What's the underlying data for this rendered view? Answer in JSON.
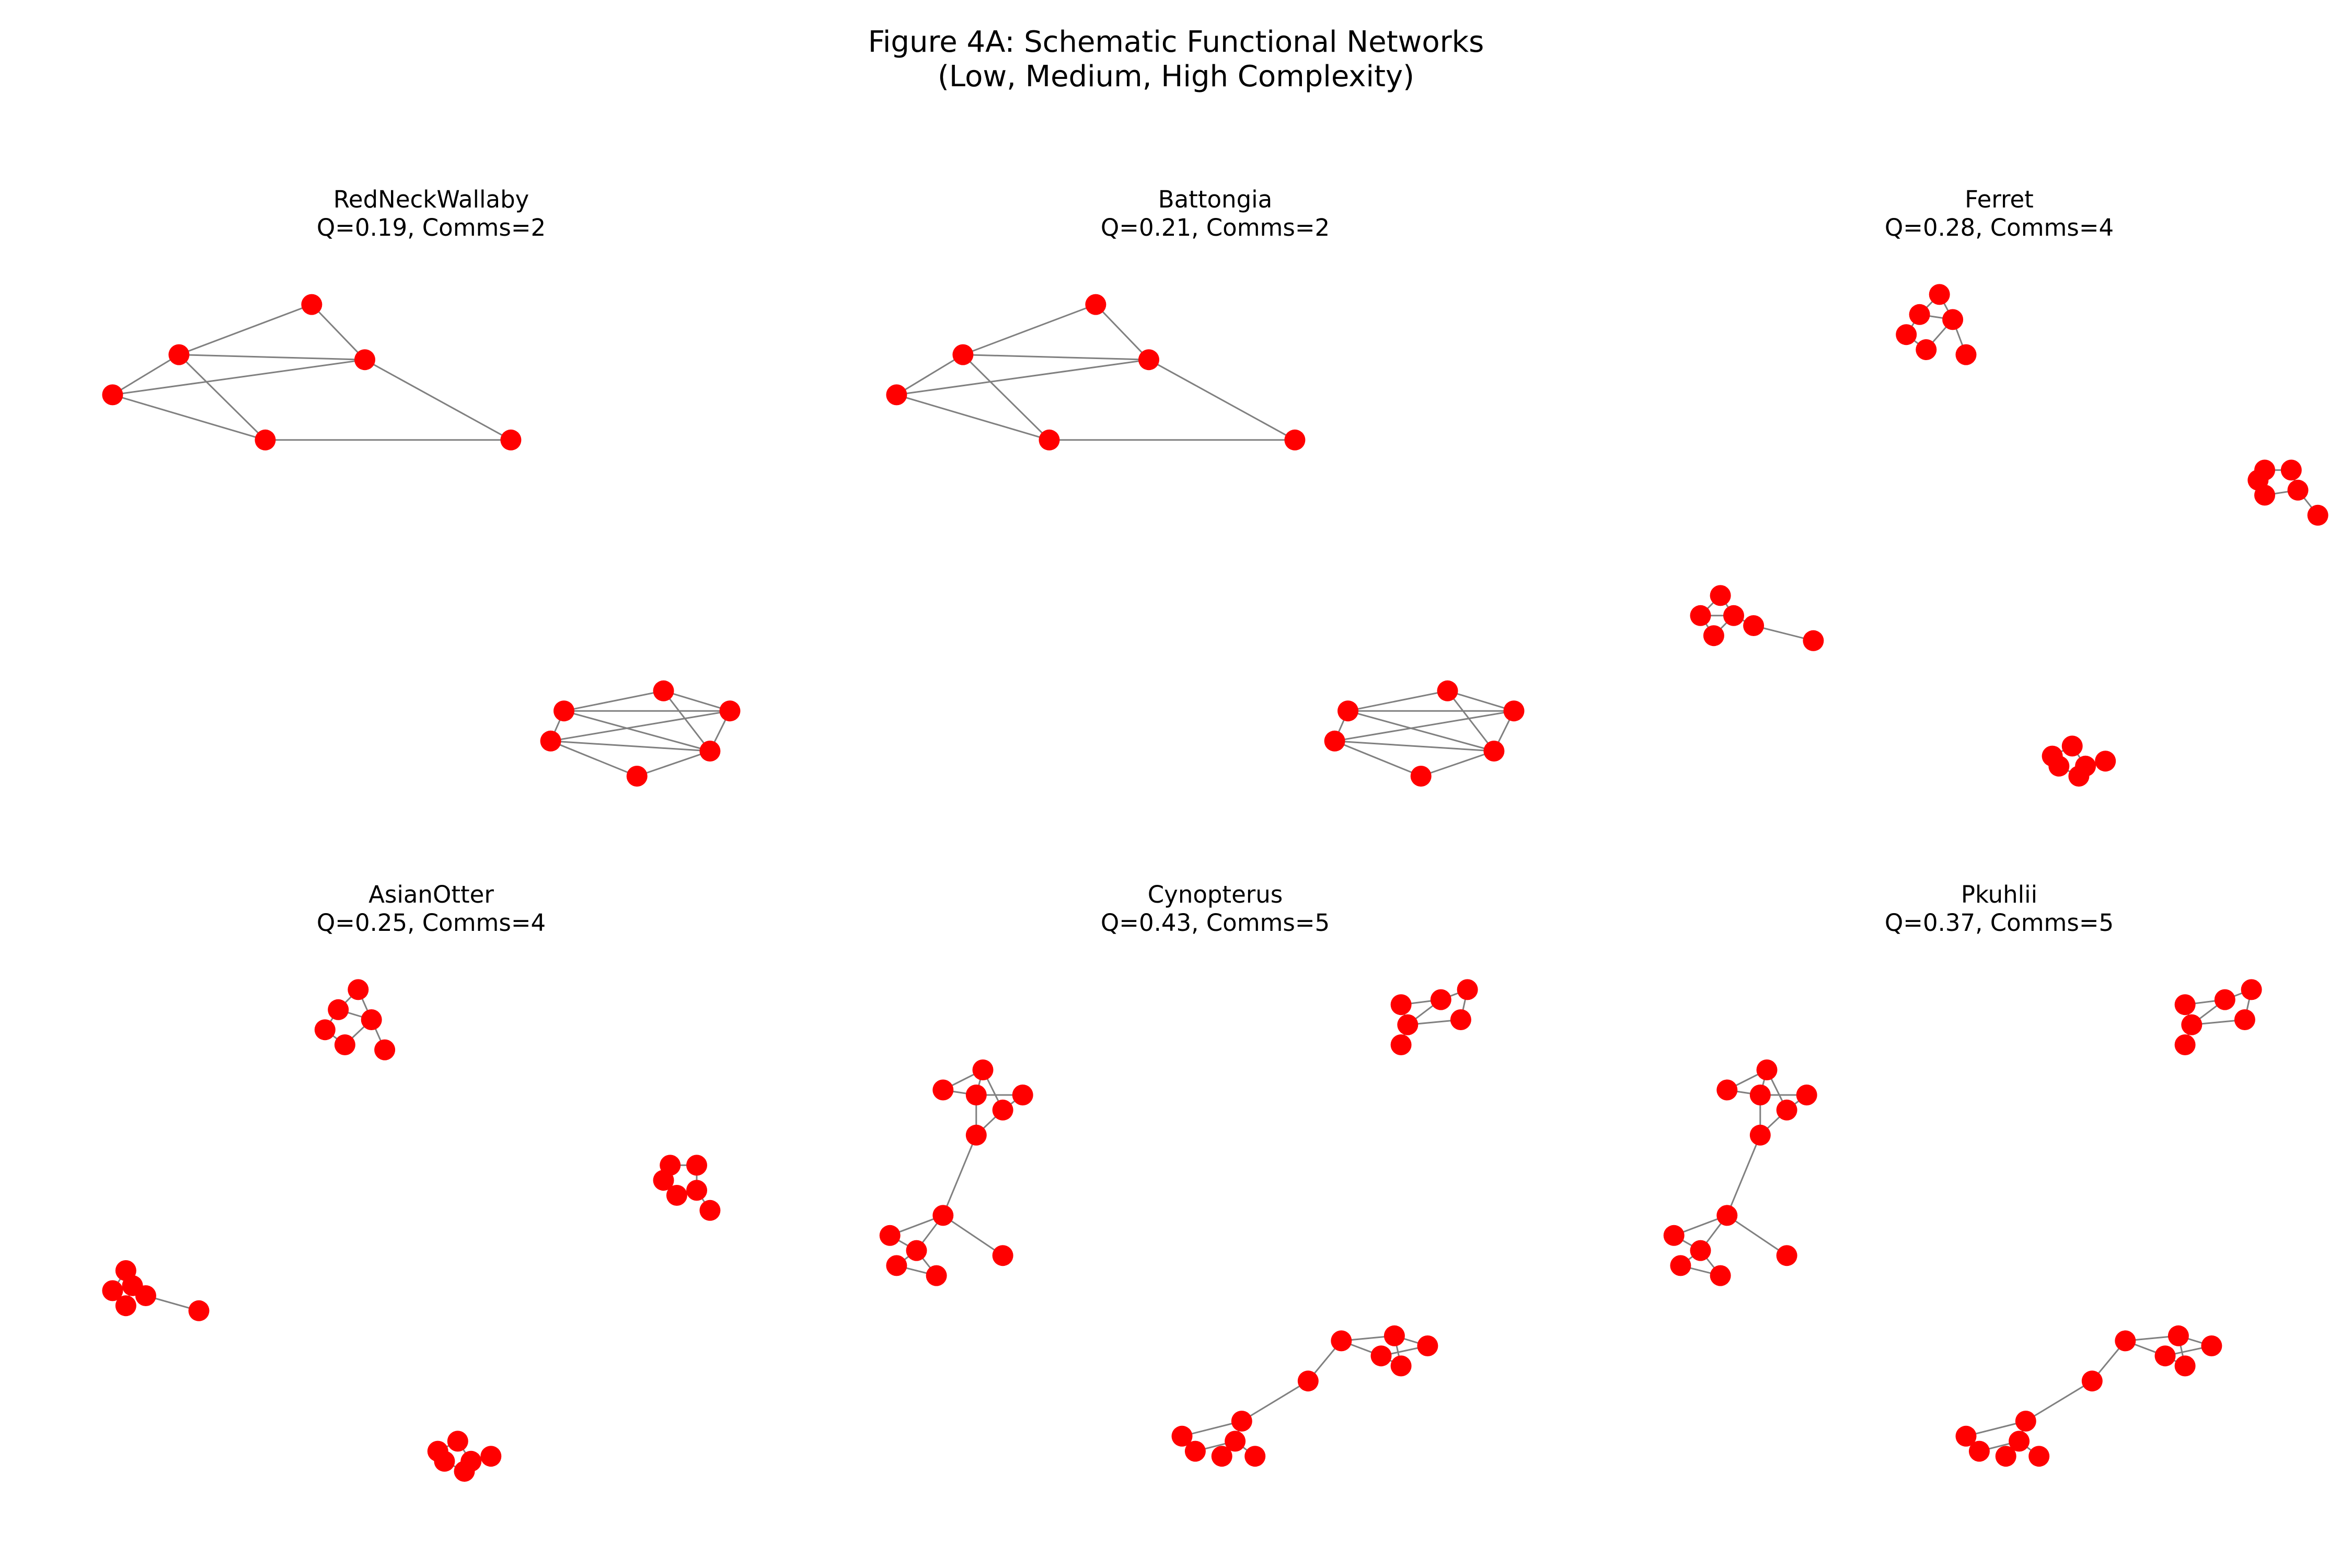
{
  "figure": {
    "title_line1": "Figure 4A: Schematic Functional Networks",
    "title_line2": "(Low, Medium, High Complexity)"
  },
  "style": {
    "node_color": "#ff0000",
    "edge_color": "#808080",
    "background": "#ffffff"
  },
  "panels": [
    {
      "name": "RedNeckWallaby",
      "stats": "Q=0.19, Comms=2",
      "Q": 0.19,
      "comms": 2,
      "nodes": [
        [
          0.32,
          0.06
        ],
        [
          0.12,
          0.16
        ],
        [
          0.4,
          0.17
        ],
        [
          0.02,
          0.24
        ],
        [
          0.25,
          0.33
        ],
        [
          0.62,
          0.33
        ],
        [
          0.85,
          0.83
        ],
        [
          0.7,
          0.87
        ],
        [
          0.95,
          0.87
        ],
        [
          0.68,
          0.93
        ],
        [
          0.92,
          0.95
        ],
        [
          0.81,
          1.0
        ]
      ],
      "edges": [
        [
          0,
          1
        ],
        [
          0,
          2
        ],
        [
          1,
          2
        ],
        [
          1,
          3
        ],
        [
          1,
          4
        ],
        [
          3,
          2
        ],
        [
          3,
          4
        ],
        [
          4,
          5
        ],
        [
          2,
          5
        ],
        [
          6,
          7
        ],
        [
          6,
          8
        ],
        [
          6,
          10
        ],
        [
          7,
          8
        ],
        [
          7,
          9
        ],
        [
          7,
          10
        ],
        [
          8,
          9
        ],
        [
          8,
          10
        ],
        [
          9,
          10
        ],
        [
          9,
          11
        ],
        [
          11,
          10
        ]
      ]
    },
    {
      "name": "Battongia",
      "stats": "Q=0.21, Comms=2",
      "Q": 0.21,
      "comms": 2,
      "nodes": [
        [
          0.32,
          0.06
        ],
        [
          0.12,
          0.16
        ],
        [
          0.4,
          0.17
        ],
        [
          0.02,
          0.24
        ],
        [
          0.25,
          0.33
        ],
        [
          0.62,
          0.33
        ],
        [
          0.85,
          0.83
        ],
        [
          0.7,
          0.87
        ],
        [
          0.95,
          0.87
        ],
        [
          0.68,
          0.93
        ],
        [
          0.92,
          0.95
        ],
        [
          0.81,
          1.0
        ]
      ],
      "edges": [
        [
          0,
          1
        ],
        [
          0,
          2
        ],
        [
          1,
          2
        ],
        [
          1,
          3
        ],
        [
          1,
          4
        ],
        [
          3,
          2
        ],
        [
          3,
          4
        ],
        [
          4,
          5
        ],
        [
          2,
          5
        ],
        [
          6,
          7
        ],
        [
          6,
          8
        ],
        [
          6,
          10
        ],
        [
          7,
          8
        ],
        [
          7,
          9
        ],
        [
          7,
          10
        ],
        [
          8,
          9
        ],
        [
          8,
          10
        ],
        [
          9,
          10
        ],
        [
          9,
          11
        ],
        [
          11,
          10
        ]
      ]
    },
    {
      "name": "Ferret",
      "stats": "Q=0.28, Comms=4",
      "Q": 0.28,
      "comms": 4,
      "nodes": [
        [
          0.41,
          0.04
        ],
        [
          0.38,
          0.08
        ],
        [
          0.43,
          0.09
        ],
        [
          0.36,
          0.12
        ],
        [
          0.39,
          0.15
        ],
        [
          0.45,
          0.16
        ],
        [
          0.9,
          0.39
        ],
        [
          0.94,
          0.39
        ],
        [
          0.89,
          0.41
        ],
        [
          0.9,
          0.44
        ],
        [
          0.95,
          0.43
        ],
        [
          0.98,
          0.48
        ],
        [
          0.08,
          0.64
        ],
        [
          0.05,
          0.68
        ],
        [
          0.1,
          0.68
        ],
        [
          0.13,
          0.7
        ],
        [
          0.07,
          0.72
        ],
        [
          0.22,
          0.73
        ],
        [
          0.61,
          0.94
        ],
        [
          0.58,
          0.96
        ],
        [
          0.63,
          0.98
        ],
        [
          0.59,
          0.98
        ],
        [
          0.66,
          0.97
        ],
        [
          0.62,
          1.0
        ]
      ],
      "edges": [
        [
          0,
          1
        ],
        [
          0,
          2
        ],
        [
          1,
          2
        ],
        [
          1,
          3
        ],
        [
          2,
          4
        ],
        [
          2,
          5
        ],
        [
          3,
          4
        ],
        [
          6,
          7
        ],
        [
          6,
          8
        ],
        [
          7,
          10
        ],
        [
          8,
          9
        ],
        [
          9,
          10
        ],
        [
          10,
          11
        ],
        [
          12,
          13
        ],
        [
          12,
          14
        ],
        [
          13,
          14
        ],
        [
          14,
          15
        ],
        [
          13,
          16
        ],
        [
          16,
          14
        ],
        [
          15,
          17
        ],
        [
          18,
          19
        ],
        [
          18,
          20
        ],
        [
          19,
          21
        ],
        [
          20,
          22
        ],
        [
          20,
          23
        ],
        [
          21,
          23
        ]
      ]
    },
    {
      "name": "AsianOtter",
      "stats": "Q=0.25, Comms=4",
      "Q": 0.25,
      "comms": 4,
      "nodes": [
        [
          0.39,
          0.04
        ],
        [
          0.36,
          0.08
        ],
        [
          0.41,
          0.1
        ],
        [
          0.34,
          0.12
        ],
        [
          0.37,
          0.15
        ],
        [
          0.43,
          0.16
        ],
        [
          0.86,
          0.39
        ],
        [
          0.9,
          0.39
        ],
        [
          0.85,
          0.42
        ],
        [
          0.87,
          0.45
        ],
        [
          0.9,
          0.44
        ],
        [
          0.92,
          0.48
        ],
        [
          0.04,
          0.6
        ],
        [
          0.02,
          0.64
        ],
        [
          0.05,
          0.63
        ],
        [
          0.07,
          0.65
        ],
        [
          0.04,
          0.67
        ],
        [
          0.15,
          0.68
        ],
        [
          0.54,
          0.94
        ],
        [
          0.51,
          0.96
        ],
        [
          0.56,
          0.98
        ],
        [
          0.52,
          0.98
        ],
        [
          0.59,
          0.97
        ],
        [
          0.55,
          1.0
        ]
      ],
      "edges": [
        [
          0,
          1
        ],
        [
          0,
          2
        ],
        [
          1,
          2
        ],
        [
          1,
          3
        ],
        [
          2,
          4
        ],
        [
          2,
          5
        ],
        [
          3,
          4
        ],
        [
          6,
          7
        ],
        [
          6,
          8
        ],
        [
          7,
          10
        ],
        [
          8,
          9
        ],
        [
          9,
          10
        ],
        [
          10,
          11
        ],
        [
          12,
          13
        ],
        [
          12,
          14
        ],
        [
          13,
          14
        ],
        [
          14,
          15
        ],
        [
          13,
          16
        ],
        [
          16,
          14
        ],
        [
          15,
          17
        ],
        [
          18,
          19
        ],
        [
          18,
          20
        ],
        [
          19,
          21
        ],
        [
          20,
          22
        ],
        [
          20,
          23
        ],
        [
          21,
          23
        ]
      ]
    },
    {
      "name": "Cynopterus",
      "stats": "Q=0.43, Comms=5",
      "Q": 0.43,
      "comms": 5,
      "nodes": [
        [
          0.88,
          0.04
        ],
        [
          0.84,
          0.06
        ],
        [
          0.78,
          0.07
        ],
        [
          0.87,
          0.1
        ],
        [
          0.79,
          0.11
        ],
        [
          0.78,
          0.15
        ],
        [
          0.15,
          0.2
        ],
        [
          0.09,
          0.24
        ],
        [
          0.14,
          0.25
        ],
        [
          0.21,
          0.25
        ],
        [
          0.18,
          0.28
        ],
        [
          0.14,
          0.33
        ],
        [
          0.09,
          0.49
        ],
        [
          0.01,
          0.53
        ],
        [
          0.05,
          0.56
        ],
        [
          0.18,
          0.57
        ],
        [
          0.02,
          0.59
        ],
        [
          0.08,
          0.61
        ],
        [
          0.69,
          0.74
        ],
        [
          0.77,
          0.73
        ],
        [
          0.82,
          0.75
        ],
        [
          0.75,
          0.77
        ],
        [
          0.78,
          0.79
        ],
        [
          0.64,
          0.82
        ],
        [
          0.54,
          0.9
        ],
        [
          0.45,
          0.93
        ],
        [
          0.53,
          0.94
        ],
        [
          0.47,
          0.96
        ],
        [
          0.51,
          0.97
        ],
        [
          0.56,
          0.97
        ]
      ],
      "edges": [
        [
          0,
          1
        ],
        [
          0,
          3
        ],
        [
          1,
          2
        ],
        [
          1,
          4
        ],
        [
          3,
          4
        ],
        [
          4,
          5
        ],
        [
          2,
          4
        ],
        [
          6,
          7
        ],
        [
          6,
          8
        ],
        [
          6,
          10
        ],
        [
          7,
          8
        ],
        [
          8,
          9
        ],
        [
          8,
          11
        ],
        [
          9,
          10
        ],
        [
          10,
          11
        ],
        [
          11,
          12
        ],
        [
          12,
          13
        ],
        [
          12,
          14
        ],
        [
          13,
          14
        ],
        [
          14,
          16
        ],
        [
          16,
          17
        ],
        [
          14,
          17
        ],
        [
          12,
          15
        ],
        [
          18,
          19
        ],
        [
          18,
          21
        ],
        [
          19,
          20
        ],
        [
          19,
          22
        ],
        [
          20,
          21
        ],
        [
          21,
          22
        ],
        [
          18,
          23
        ],
        [
          23,
          24
        ],
        [
          24,
          25
        ],
        [
          24,
          26
        ],
        [
          25,
          27
        ],
        [
          26,
          27
        ],
        [
          26,
          28
        ],
        [
          26,
          29
        ]
      ]
    },
    {
      "name": "Pkuhlii",
      "stats": "Q=0.37, Comms=5",
      "Q": 0.37,
      "comms": 5,
      "nodes": [
        [
          0.88,
          0.04
        ],
        [
          0.84,
          0.06
        ],
        [
          0.78,
          0.07
        ],
        [
          0.87,
          0.1
        ],
        [
          0.79,
          0.11
        ],
        [
          0.78,
          0.15
        ],
        [
          0.15,
          0.2
        ],
        [
          0.09,
          0.24
        ],
        [
          0.14,
          0.25
        ],
        [
          0.21,
          0.25
        ],
        [
          0.18,
          0.28
        ],
        [
          0.14,
          0.33
        ],
        [
          0.09,
          0.49
        ],
        [
          0.01,
          0.53
        ],
        [
          0.05,
          0.56
        ],
        [
          0.18,
          0.57
        ],
        [
          0.02,
          0.59
        ],
        [
          0.08,
          0.61
        ],
        [
          0.69,
          0.74
        ],
        [
          0.77,
          0.73
        ],
        [
          0.82,
          0.75
        ],
        [
          0.75,
          0.77
        ],
        [
          0.78,
          0.79
        ],
        [
          0.64,
          0.82
        ],
        [
          0.54,
          0.9
        ],
        [
          0.45,
          0.93
        ],
        [
          0.53,
          0.94
        ],
        [
          0.47,
          0.96
        ],
        [
          0.51,
          0.97
        ],
        [
          0.56,
          0.97
        ]
      ],
      "edges": [
        [
          0,
          1
        ],
        [
          0,
          3
        ],
        [
          1,
          2
        ],
        [
          1,
          4
        ],
        [
          3,
          4
        ],
        [
          4,
          5
        ],
        [
          2,
          4
        ],
        [
          6,
          7
        ],
        [
          6,
          8
        ],
        [
          6,
          10
        ],
        [
          7,
          8
        ],
        [
          8,
          9
        ],
        [
          8,
          11
        ],
        [
          9,
          10
        ],
        [
          10,
          11
        ],
        [
          11,
          12
        ],
        [
          12,
          13
        ],
        [
          12,
          14
        ],
        [
          13,
          14
        ],
        [
          14,
          16
        ],
        [
          16,
          17
        ],
        [
          14,
          17
        ],
        [
          12,
          15
        ],
        [
          18,
          19
        ],
        [
          18,
          21
        ],
        [
          19,
          20
        ],
        [
          19,
          22
        ],
        [
          20,
          21
        ],
        [
          21,
          22
        ],
        [
          18,
          23
        ],
        [
          23,
          24
        ],
        [
          24,
          25
        ],
        [
          24,
          26
        ],
        [
          25,
          27
        ],
        [
          26,
          27
        ],
        [
          26,
          28
        ],
        [
          26,
          29
        ]
      ]
    }
  ]
}
